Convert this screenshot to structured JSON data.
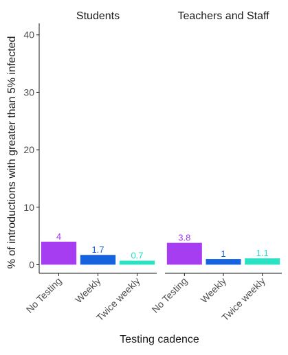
{
  "chart_data": {
    "type": "bar",
    "xlabel": "Testing cadence",
    "ylabel": "% of introductions with greater than 5% infected",
    "ylim": [
      -1.5,
      42
    ],
    "yticks": [
      0,
      10,
      20,
      30,
      40
    ],
    "grid": false,
    "categories": [
      "No Testing",
      "Weekly",
      "Twice weekly"
    ],
    "colors": [
      "#A233F0",
      "#0B5BDD",
      "#1FE0C0"
    ],
    "facets": [
      {
        "title": "Students",
        "values": [
          4,
          1.7,
          0.7
        ],
        "labels": [
          "4",
          "1.7",
          "0.7"
        ]
      },
      {
        "title": "Teachers and Staff",
        "values": [
          3.8,
          1,
          1.1
        ],
        "labels": [
          "3.8",
          "1",
          "1.1"
        ]
      }
    ]
  }
}
